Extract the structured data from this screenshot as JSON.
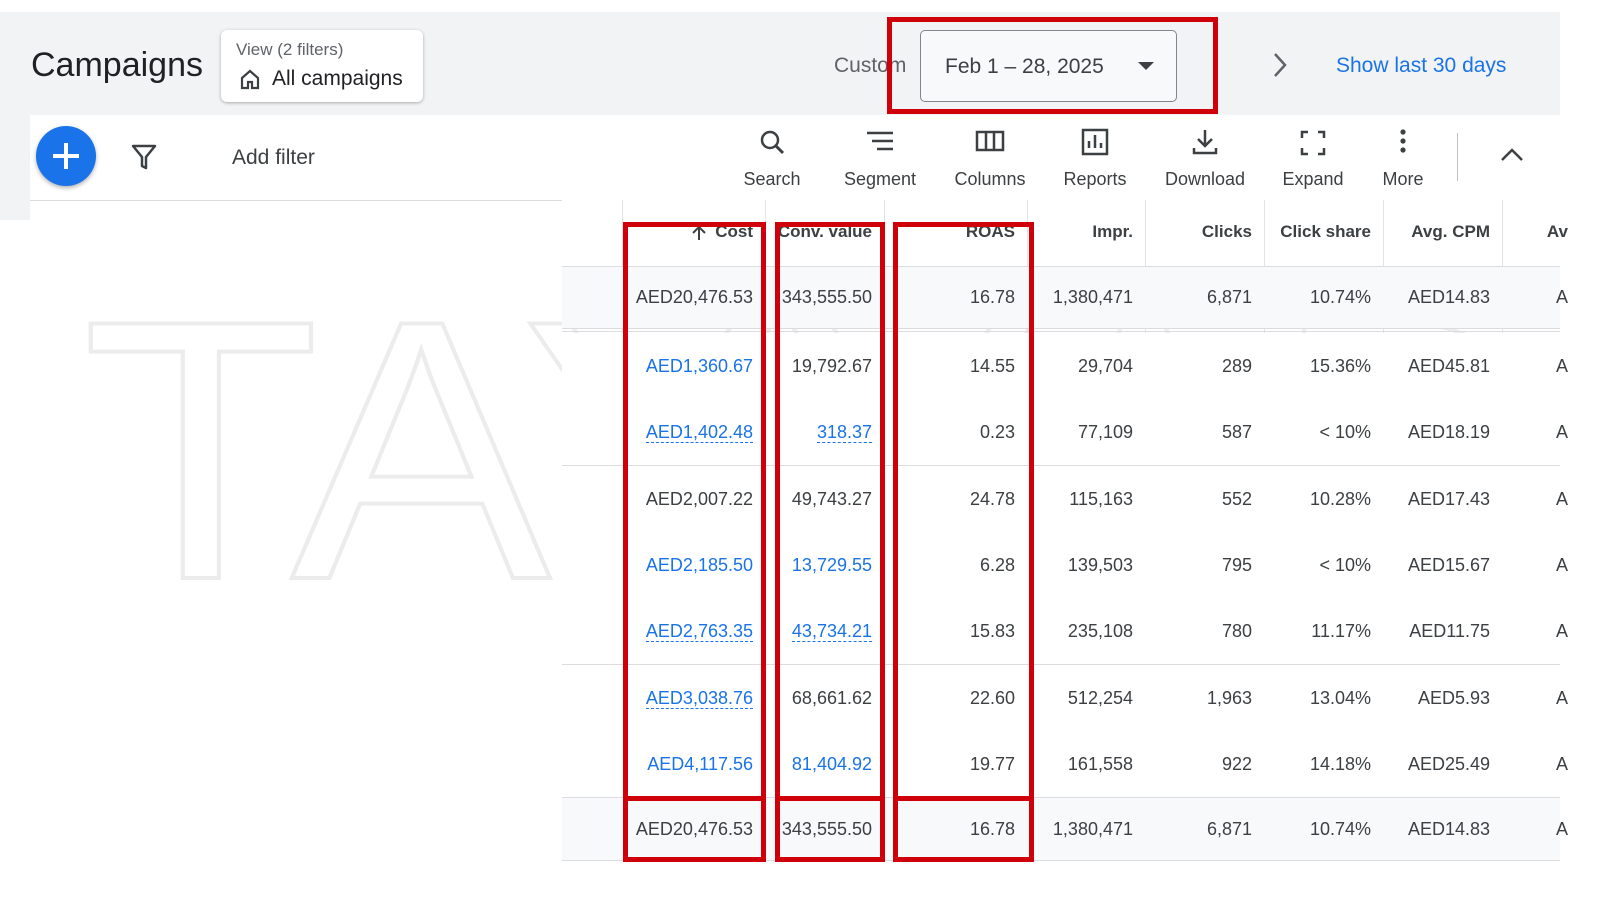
{
  "header": {
    "title": "Campaigns",
    "view_label": "View (2 filters)",
    "view_name": "All campaigns",
    "date_prefix": "Custom",
    "date_range": "Feb 1 – 28, 2025",
    "show_last": "Show last 30 days"
  },
  "toolbar": {
    "add_filter": "Add filter",
    "tools": [
      "Search",
      "Segment",
      "Columns",
      "Reports",
      "Download",
      "Expand",
      "More"
    ]
  },
  "watermark": "TAYYAB",
  "table": {
    "columns": [
      "Cost",
      "Conv. value",
      "ROAS",
      "Impr.",
      "Clicks",
      "Click share",
      "Avg. CPM",
      "Av"
    ],
    "summary": [
      "AED20,476.53",
      "343,555.50",
      "16.78",
      "1,380,471",
      "6,871",
      "10.74%",
      "AED14.83",
      "A"
    ],
    "rows": [
      {
        "cells": [
          "AED1,360.67",
          "19,792.67",
          "14.55",
          "29,704",
          "289",
          "15.36%",
          "AED45.81",
          "A"
        ],
        "links": [
          0
        ],
        "underlined": []
      },
      {
        "cells": [
          "AED1,402.48",
          "318.37",
          "0.23",
          "77,109",
          "587",
          "< 10%",
          "AED18.19",
          "A"
        ],
        "links": [
          0,
          1
        ],
        "underlined": [
          0,
          1
        ]
      },
      {
        "cells": [
          "AED2,007.22",
          "49,743.27",
          "24.78",
          "115,163",
          "552",
          "10.28%",
          "AED17.43",
          "A"
        ],
        "links": [],
        "underlined": []
      },
      {
        "cells": [
          "AED2,185.50",
          "13,729.55",
          "6.28",
          "139,503",
          "795",
          "< 10%",
          "AED15.67",
          "A"
        ],
        "links": [
          0,
          1
        ],
        "underlined": []
      },
      {
        "cells": [
          "AED2,763.35",
          "43,734.21",
          "15.83",
          "235,108",
          "780",
          "11.17%",
          "AED11.75",
          "A"
        ],
        "links": [
          0,
          1
        ],
        "underlined": [
          0,
          1
        ]
      },
      {
        "cells": [
          "AED3,038.76",
          "68,661.62",
          "22.60",
          "512,254",
          "1,963",
          "13.04%",
          "AED5.93",
          "A"
        ],
        "links": [
          0
        ],
        "underlined": [
          0
        ]
      },
      {
        "cells": [
          "AED4,117.56",
          "81,404.92",
          "19.77",
          "161,558",
          "922",
          "14.18%",
          "AED25.49",
          "A"
        ],
        "links": [
          0,
          1
        ],
        "underlined": []
      }
    ],
    "total": [
      "AED20,476.53",
      "343,555.50",
      "16.78",
      "1,380,471",
      "6,871",
      "10.74%",
      "AED14.83",
      "A"
    ]
  }
}
